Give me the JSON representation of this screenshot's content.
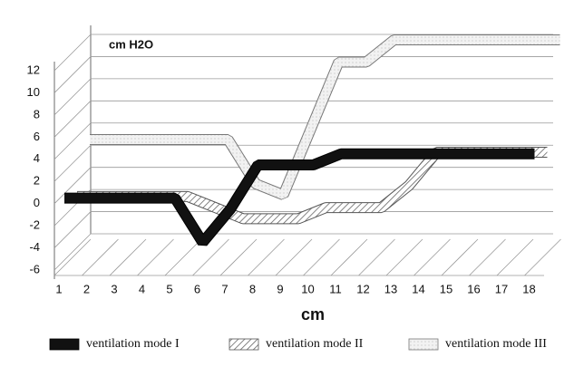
{
  "chart_data": {
    "type": "line",
    "y_label": "cm H2O",
    "x_label": "cm",
    "categories": [
      "1",
      "2",
      "3",
      "4",
      "5",
      "6",
      "7",
      "8",
      "9",
      "10",
      "11",
      "12",
      "13",
      "14",
      "15",
      "16",
      "17",
      "18"
    ],
    "series": [
      {
        "name": "ventilation mode I",
        "color": "#111111",
        "values": [
          0,
          0,
          0,
          0,
          0,
          -4,
          -1,
          3,
          3,
          3,
          4,
          4,
          4,
          4,
          4,
          4,
          4,
          4
        ]
      },
      {
        "name": "ventilation mode II",
        "color": "#888888",
        "values": [
          -1,
          -1,
          -1,
          -1,
          -1,
          -2,
          -3,
          -3,
          -3,
          -2,
          -2,
          -2,
          0,
          3,
          3,
          3,
          3,
          3
        ]
      },
      {
        "name": "ventilation mode III",
        "color": "#dddddd",
        "values": [
          3,
          3,
          3,
          3,
          3,
          3,
          -1,
          -2,
          4,
          10,
          10,
          12,
          12,
          12,
          12,
          12,
          12,
          12
        ]
      }
    ],
    "ylim": [
      -6,
      12
    ],
    "yticks": [
      -6,
      -4,
      -2,
      0,
      2,
      4,
      6,
      8,
      10,
      12
    ],
    "grid": true
  }
}
